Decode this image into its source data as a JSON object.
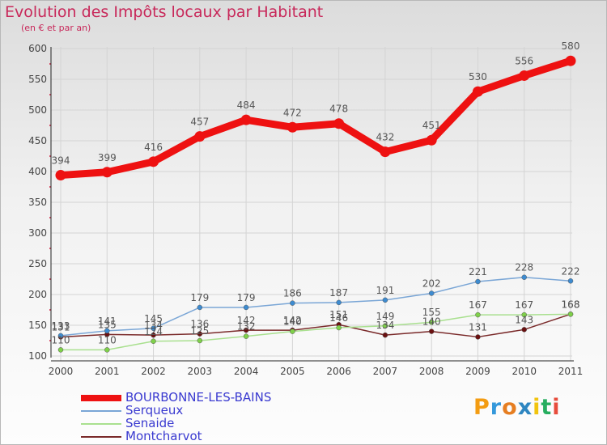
{
  "page": {
    "title": "Evolution des Impôts locaux par Habitant",
    "subtitle": "(en € et par an)"
  },
  "logo": {
    "text": "Proxiti",
    "letters": [
      "P",
      "r",
      "o",
      "x",
      "i",
      "t",
      "i"
    ],
    "colors": [
      "#f39c12",
      "#3498db",
      "#e67e22",
      "#2e86c1",
      "#f1c40f",
      "#27ae60",
      "#e74c3c"
    ]
  },
  "chart_data": {
    "type": "line",
    "title": "Evolution des Impôts locaux par Habitant",
    "subtitle": "(en € et par an)",
    "xlabel": "",
    "ylabel": "",
    "categories": [
      "2000",
      "2001",
      "2002",
      "2003",
      "2004",
      "2005",
      "2006",
      "2007",
      "2008",
      "2009",
      "2010",
      "2011"
    ],
    "ylim": [
      100,
      600
    ],
    "yticks": [
      100,
      150,
      200,
      250,
      300,
      350,
      400,
      450,
      500,
      550,
      600
    ],
    "grid": true,
    "legend_position": "bottom-left",
    "series": [
      {
        "name": "BOURBONNE-LES-BAINS",
        "color": "#ee1111",
        "marker_color": "#ee1111",
        "values": [
          394,
          399,
          416,
          457,
          484,
          472,
          478,
          432,
          451,
          530,
          556,
          580
        ],
        "labels": [
          "394",
          "399",
          "416",
          "457",
          "484",
          "472",
          "478",
          "432",
          "451",
          "530",
          "556",
          "580"
        ]
      },
      {
        "name": "Serqueux",
        "color": "#7aa6d6",
        "marker_color": "#3d8bd0",
        "values": [
          133,
          141,
          145,
          179,
          179,
          186,
          187,
          191,
          202,
          221,
          228,
          222
        ],
        "labels": [
          "133",
          "141",
          "145",
          "179",
          "179",
          "186",
          "187",
          "191",
          "202",
          "221",
          "228",
          "222"
        ]
      },
      {
        "name": "Senaide",
        "color": "#a9e08f",
        "marker_color": "#7fd04a",
        "values": [
          110,
          110,
          124,
          125,
          132,
          140,
          146,
          149,
          155,
          167,
          167,
          168
        ],
        "labels": [
          "110",
          "110",
          "124",
          "125",
          "132",
          "140",
          "146",
          "149",
          "155",
          "167",
          "167",
          "168"
        ]
      },
      {
        "name": "Montcharvot",
        "color": "#7a2a2a",
        "marker_color": "#6a1010",
        "values": [
          131,
          135,
          134,
          136,
          142,
          142,
          151,
          134,
          140,
          131,
          143,
          168
        ],
        "labels": [
          "131",
          "135",
          "134",
          "136",
          "142",
          "142",
          "151",
          "134",
          "140",
          "131",
          "143",
          "168"
        ]
      }
    ]
  }
}
